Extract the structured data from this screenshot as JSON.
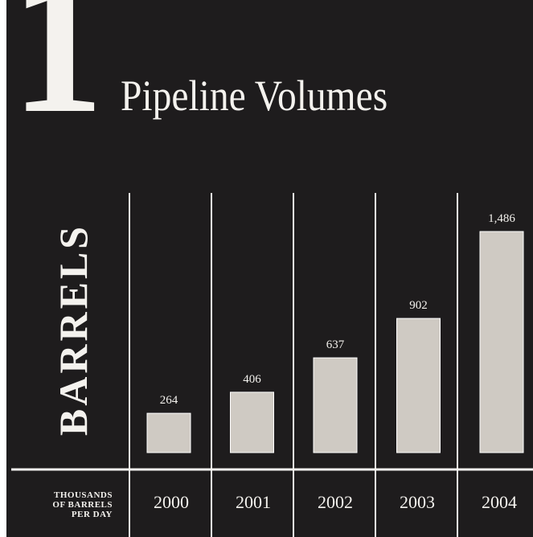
{
  "header": {
    "numeral": "1",
    "title": "Pipeline Volumes"
  },
  "colors": {
    "background": "#1e1c1d",
    "foreground": "#f4f2ee",
    "bar_fill": "#cfcac3"
  },
  "chart_data": {
    "type": "bar",
    "title": "Pipeline Volumes",
    "ylabel": "BARRELS",
    "xlabel": "",
    "units_label": [
      "THOUSANDS",
      "OF BARRELS",
      "PER DAY"
    ],
    "categories": [
      "2000",
      "2001",
      "2002",
      "2003",
      "2004"
    ],
    "values": [
      264,
      406,
      637,
      902,
      1486
    ],
    "value_labels": [
      "264",
      "406",
      "637",
      "902",
      "1,486"
    ],
    "ylim": [
      0,
      1486
    ],
    "grid": false
  }
}
